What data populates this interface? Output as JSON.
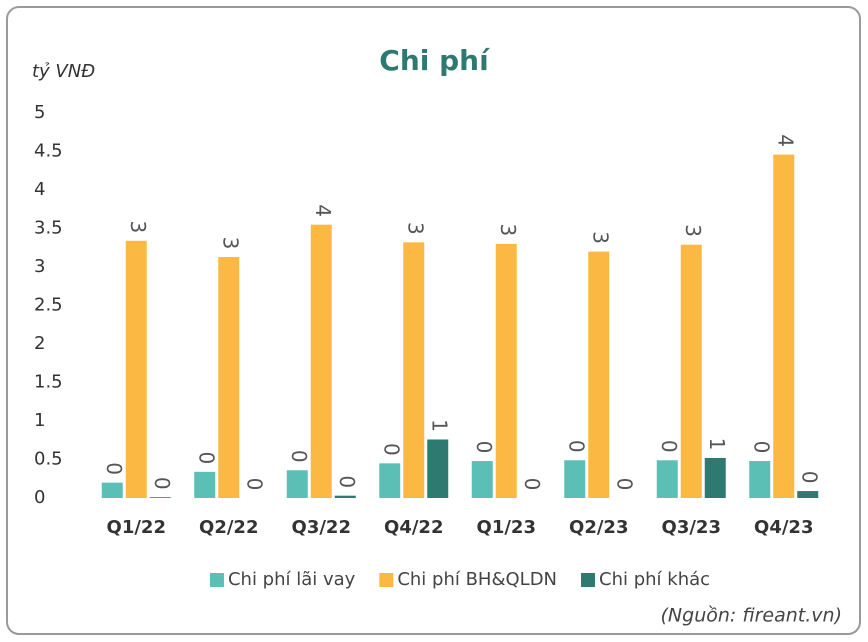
{
  "chart_data": {
    "type": "bar",
    "title": "Chi phí",
    "y_axis_label": "tỷ VNĐ",
    "source": "(Nguồn: fireant.vn)",
    "categories": [
      "Q1/22",
      "Q2/22",
      "Q3/22",
      "Q4/22",
      "Q1/23",
      "Q2/23",
      "Q3/23",
      "Q4/23"
    ],
    "series": [
      {
        "name": "Chi phí lãi vay",
        "color": "#5bbfb5",
        "values": [
          0.2,
          0.34,
          0.36,
          0.45,
          0.48,
          0.49,
          0.49,
          0.48
        ],
        "value_labels": [
          "0",
          "0",
          "0",
          "0",
          "0",
          "0",
          "0",
          "0"
        ]
      },
      {
        "name": "Chi phí BH&QLDN",
        "color": "#fbb843",
        "values": [
          3.34,
          3.13,
          3.55,
          3.32,
          3.3,
          3.2,
          3.29,
          4.46
        ],
        "value_labels": [
          "3",
          "3",
          "4",
          "3",
          "3",
          "3",
          "3",
          "4"
        ]
      },
      {
        "name": "Chi phí khác",
        "color": "#2e7a70",
        "values": [
          0.01,
          0,
          0.03,
          0.76,
          0,
          0,
          0.52,
          0.09
        ],
        "value_labels": [
          "0",
          "0",
          "0",
          "1",
          "0",
          "0",
          "1",
          "0"
        ]
      }
    ],
    "ylim": [
      0,
      5
    ],
    "yticks": [
      0,
      0.5,
      1,
      1.5,
      2,
      2.5,
      3,
      3.5,
      4,
      4.5,
      5
    ],
    "grid": false,
    "legend": "bottom"
  }
}
